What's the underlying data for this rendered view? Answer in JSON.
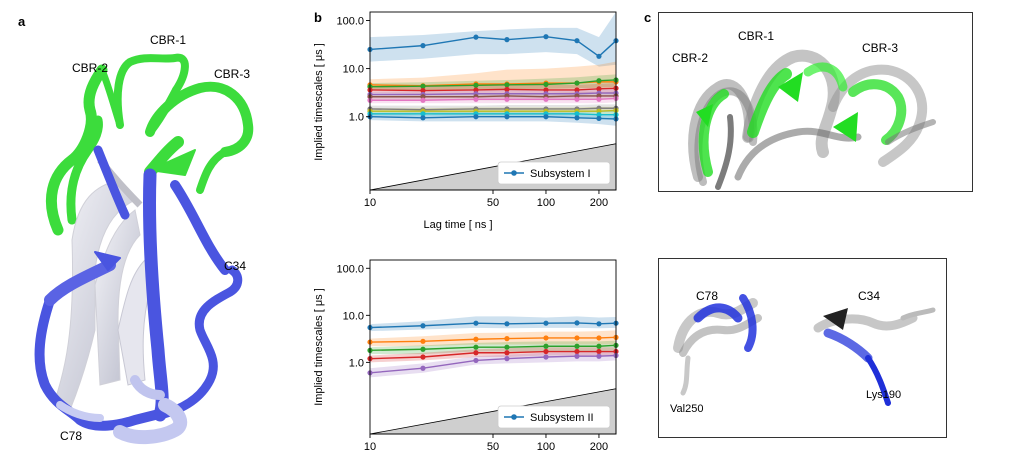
{
  "panels": {
    "a": {
      "letter": "a",
      "labels": {
        "cbr1": "CBR-1",
        "cbr2": "CBR-2",
        "cbr3": "CBR-3",
        "c34": "C34",
        "c78": "C78"
      }
    },
    "b": {
      "letter": "b"
    },
    "c": {
      "letter": "c",
      "top_labels": {
        "cbr1": "CBR-1",
        "cbr2": "CBR-2",
        "cbr3": "CBR-3"
      },
      "bottom_labels": {
        "c78": "C78",
        "c34": "C34",
        "val250": "Val250",
        "lys190": "Lys190"
      }
    }
  },
  "colors": {
    "green": "#3cdc3c",
    "blue": "#4a55e0",
    "white": "#e8e8ee",
    "grey": "#9a9a9a"
  },
  "chart_data": [
    {
      "type": "line",
      "title": "",
      "xlabel": "Lag time [ ns ]",
      "ylabel": "Implied timescales [ μs ]",
      "xscale": "log",
      "yscale": "log",
      "xlim": [
        10,
        250
      ],
      "ylim": [
        0.03,
        150
      ],
      "xticks": [
        10,
        50,
        100,
        200
      ],
      "xtick_labels": [
        "10",
        "50",
        "100",
        "200"
      ],
      "yticks": [
        1,
        10,
        100
      ],
      "ytick_labels": [
        "1.0",
        "10.0",
        "100.0"
      ],
      "legend": "Subsystem I",
      "legend_position": "bottom-right",
      "x": [
        10,
        20,
        40,
        60,
        100,
        150,
        200,
        250
      ],
      "series": [
        {
          "name": "s1",
          "color": "#1f77b4",
          "values": [
            25,
            30,
            45,
            40,
            46,
            38,
            18,
            38
          ],
          "lo": [
            14,
            16,
            20,
            20,
            22,
            20,
            11,
            12
          ],
          "hi": [
            45,
            50,
            60,
            65,
            70,
            70,
            45,
            150
          ]
        },
        {
          "name": "s2",
          "color": "#ff7f0e",
          "values": [
            4.6,
            4.4,
            4.8,
            4.8,
            5.0,
            5.0,
            5.3,
            5.3
          ],
          "lo": [
            3.8,
            3.6,
            3.8,
            3.6,
            3.8,
            3.8,
            4.0,
            4.0
          ],
          "hi": [
            6.0,
            6.5,
            8.0,
            9.5,
            10,
            11,
            12,
            14
          ]
        },
        {
          "name": "s3",
          "color": "#2ca02c",
          "values": [
            4.2,
            4.3,
            4.5,
            4.6,
            4.7,
            5.0,
            5.6,
            5.8
          ],
          "lo": [
            3.6,
            3.6,
            3.7,
            3.7,
            3.8,
            3.9,
            4.0,
            4.2
          ],
          "hi": [
            5.0,
            5.2,
            5.6,
            5.8,
            6.2,
            6.6,
            7.2,
            7.6
          ]
        },
        {
          "name": "s4",
          "color": "#d62728",
          "values": [
            3.6,
            3.5,
            3.6,
            3.7,
            3.6,
            3.6,
            3.8,
            3.9
          ],
          "lo": [
            3.1,
            3.0,
            3.0,
            3.0,
            3.0,
            3.0,
            3.1,
            3.2
          ],
          "hi": [
            4.2,
            4.2,
            4.4,
            4.5,
            4.6,
            4.6,
            4.8,
            5.0
          ]
        },
        {
          "name": "s5",
          "color": "#9467bd",
          "values": [
            2.9,
            2.9,
            3.0,
            3.0,
            3.0,
            3.0,
            3.1,
            3.1
          ],
          "lo": [
            2.5,
            2.5,
            2.5,
            2.5,
            2.5,
            2.5,
            2.6,
            2.6
          ],
          "hi": [
            3.3,
            3.4,
            3.5,
            3.6,
            3.6,
            3.6,
            3.7,
            3.8
          ]
        },
        {
          "name": "s6",
          "color": "#8c564b",
          "values": [
            2.6,
            2.6,
            2.6,
            2.7,
            2.6,
            2.7,
            2.7,
            2.7
          ],
          "lo": [
            2.2,
            2.2,
            2.2,
            2.2,
            2.2,
            2.2,
            2.3,
            2.3
          ],
          "hi": [
            3.0,
            3.0,
            3.1,
            3.1,
            3.1,
            3.2,
            3.2,
            3.3
          ]
        },
        {
          "name": "s7",
          "color": "#e377c2",
          "values": [
            2.2,
            2.2,
            2.3,
            2.3,
            2.3,
            2.3,
            2.3,
            2.4
          ],
          "lo": [
            1.9,
            1.9,
            1.9,
            1.9,
            1.9,
            1.9,
            1.9,
            2.0
          ],
          "hi": [
            2.6,
            2.6,
            2.7,
            2.7,
            2.7,
            2.8,
            2.8,
            2.9
          ]
        },
        {
          "name": "s8",
          "color": "#7f7f7f",
          "values": [
            1.45,
            1.4,
            1.45,
            1.45,
            1.45,
            1.45,
            1.5,
            1.5
          ],
          "lo": [
            1.25,
            1.2,
            1.2,
            1.2,
            1.2,
            1.2,
            1.25,
            1.25
          ],
          "hi": [
            1.7,
            1.7,
            1.7,
            1.75,
            1.75,
            1.75,
            1.8,
            1.8
          ]
        },
        {
          "name": "s9",
          "color": "#bcbd22",
          "values": [
            1.3,
            1.3,
            1.3,
            1.3,
            1.3,
            1.3,
            1.3,
            1.35
          ],
          "lo": [
            1.1,
            1.1,
            1.1,
            1.1,
            1.1,
            1.1,
            1.1,
            1.1
          ],
          "hi": [
            1.5,
            1.5,
            1.55,
            1.55,
            1.55,
            1.55,
            1.6,
            1.6
          ]
        },
        {
          "name": "s10",
          "color": "#17becf",
          "values": [
            1.15,
            1.15,
            1.15,
            1.15,
            1.15,
            1.15,
            1.1,
            1.1
          ],
          "lo": [
            1.0,
            1.0,
            1.0,
            0.95,
            0.95,
            0.95,
            0.9,
            0.85
          ],
          "hi": [
            1.3,
            1.3,
            1.35,
            1.35,
            1.35,
            1.35,
            1.35,
            1.35
          ]
        },
        {
          "name": "s11",
          "color": "#1f77b4",
          "values": [
            1.0,
            0.95,
            1.0,
            1.0,
            1.0,
            0.95,
            0.92,
            0.9
          ],
          "lo": [
            0.85,
            0.8,
            0.8,
            0.8,
            0.8,
            0.75,
            0.7,
            0.65
          ],
          "hi": [
            1.15,
            1.1,
            1.15,
            1.15,
            1.15,
            1.15,
            1.1,
            1.15
          ]
        }
      ]
    },
    {
      "type": "line",
      "title": "",
      "xlabel": "",
      "ylabel": "Implied timescales [ μs ]",
      "xscale": "log",
      "yscale": "log",
      "xlim": [
        10,
        250
      ],
      "ylim": [
        0.03,
        150
      ],
      "xticks": [
        10,
        50,
        100,
        200
      ],
      "xtick_labels": [
        "10",
        "50",
        "100",
        "200"
      ],
      "yticks": [
        1,
        10,
        100
      ],
      "ytick_labels": [
        "1.0",
        "10.0",
        "100.0"
      ],
      "legend": "Subsystem II",
      "legend_position": "bottom-right",
      "x": [
        10,
        20,
        40,
        60,
        100,
        150,
        200,
        250
      ],
      "series": [
        {
          "name": "t1",
          "color": "#1f77b4",
          "values": [
            5.5,
            6.0,
            6.8,
            6.6,
            6.8,
            6.9,
            6.6,
            6.8
          ],
          "lo": [
            4.6,
            5.0,
            5.4,
            5.3,
            5.4,
            5.4,
            5.3,
            5.4
          ],
          "hi": [
            6.5,
            7.5,
            9.5,
            9.5,
            9.0,
            9.5,
            9.0,
            9.2
          ]
        },
        {
          "name": "t2",
          "color": "#ff7f0e",
          "values": [
            2.7,
            2.8,
            3.1,
            3.2,
            3.3,
            3.3,
            3.3,
            3.4
          ],
          "lo": [
            2.2,
            2.2,
            2.4,
            2.4,
            2.4,
            2.4,
            2.4,
            2.4
          ],
          "hi": [
            3.2,
            3.6,
            4.2,
            4.3,
            4.5,
            4.5,
            4.6,
            4.8
          ]
        },
        {
          "name": "t3",
          "color": "#2ca02c",
          "values": [
            1.8,
            1.9,
            2.1,
            2.1,
            2.2,
            2.2,
            2.2,
            2.3
          ],
          "lo": [
            1.5,
            1.5,
            1.7,
            1.7,
            1.7,
            1.7,
            1.7,
            1.8
          ],
          "hi": [
            2.1,
            2.3,
            2.6,
            2.7,
            2.8,
            2.8,
            2.8,
            2.9
          ]
        },
        {
          "name": "t4",
          "color": "#d62728",
          "values": [
            1.2,
            1.3,
            1.6,
            1.6,
            1.7,
            1.7,
            1.7,
            1.7
          ],
          "lo": [
            1.0,
            1.1,
            1.3,
            1.3,
            1.4,
            1.4,
            1.4,
            1.4
          ],
          "hi": [
            1.4,
            1.6,
            1.9,
            2.0,
            2.1,
            2.1,
            2.1,
            2.1
          ]
        },
        {
          "name": "t5",
          "color": "#9467bd",
          "values": [
            0.6,
            0.75,
            1.1,
            1.2,
            1.3,
            1.35,
            1.35,
            1.4
          ],
          "lo": [
            0.48,
            0.6,
            0.9,
            0.95,
            1.0,
            1.05,
            1.05,
            1.1
          ],
          "hi": [
            0.75,
            0.95,
            1.35,
            1.45,
            1.6,
            1.65,
            1.65,
            1.7
          ]
        }
      ]
    }
  ]
}
